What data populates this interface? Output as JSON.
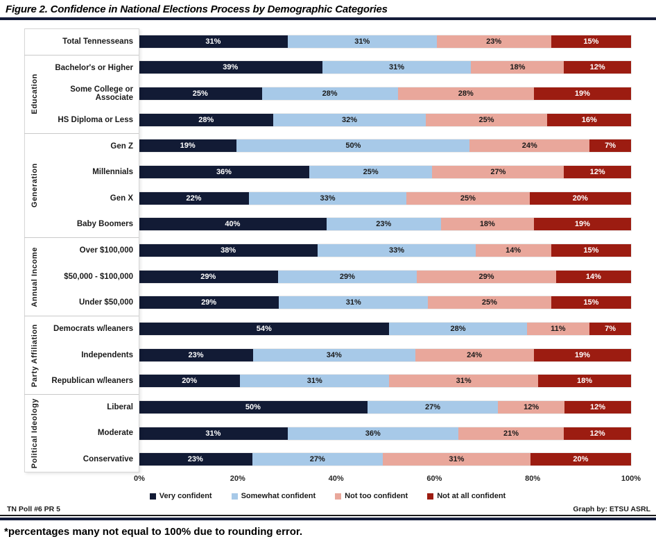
{
  "title": "Figure 2. Confidence in National Elections Process by Demographic Categories",
  "footer": {
    "left": "TN Poll #6 PR 5",
    "right": "Graph by: ETSU ASRL"
  },
  "footnote": "*percentages many not equal to 100% due to rounding error.",
  "colors": {
    "very_confident": "#121b35",
    "somewhat_confident": "#a7c9e8",
    "not_too_confident": "#e9a79b",
    "not_at_all_confident": "#9c1c11",
    "rule": "#141c3a",
    "group_separator": "#c9c9c9"
  },
  "chart_data": {
    "type": "bar",
    "orientation": "horizontal-stacked",
    "stacked": true,
    "xlim": [
      0,
      100
    ],
    "x_ticks": [
      "0%",
      "20%",
      "40%",
      "60%",
      "80%",
      "100%"
    ],
    "grid": false,
    "legend_position": "bottom",
    "series_names": [
      "Very confident",
      "Somewhat confident",
      "Not too confident",
      "Not at all confident"
    ],
    "series_colors": [
      "#121b35",
      "#a7c9e8",
      "#e9a79b",
      "#9c1c11"
    ],
    "series_label_colors": [
      "#ffffff",
      "#1a1a1a",
      "#1a1a1a",
      "#ffffff"
    ],
    "value_suffix": "%",
    "groups": [
      {
        "label": "",
        "rows": [
          {
            "category": "Total Tennesseans",
            "values": [
              31,
              31,
              23,
              15
            ]
          }
        ]
      },
      {
        "label": "Education",
        "rows": [
          {
            "category": "Bachelor's or Higher",
            "values": [
              39,
              31,
              18,
              12
            ]
          },
          {
            "category": "Some College or Associate",
            "values": [
              25,
              28,
              28,
              19
            ]
          },
          {
            "category": "HS Diploma or Less",
            "values": [
              28,
              32,
              25,
              16
            ]
          }
        ]
      },
      {
        "label": "Generation",
        "rows": [
          {
            "category": "Gen Z",
            "values": [
              19,
              50,
              24,
              7
            ]
          },
          {
            "category": "Millennials",
            "values": [
              36,
              25,
              27,
              12
            ]
          },
          {
            "category": "Gen X",
            "values": [
              22,
              33,
              25,
              20
            ]
          },
          {
            "category": "Baby Boomers",
            "values": [
              40,
              23,
              18,
              19
            ]
          }
        ]
      },
      {
        "label": "Annual Income",
        "rows": [
          {
            "category": "Over $100,000",
            "values": [
              38,
              33,
              14,
              15
            ]
          },
          {
            "category": "$50,000 - $100,000",
            "values": [
              29,
              29,
              29,
              14
            ]
          },
          {
            "category": "Under $50,000",
            "values": [
              29,
              31,
              25,
              15
            ]
          }
        ]
      },
      {
        "label": "Party Affiliation",
        "rows": [
          {
            "category": "Democrats w/leaners",
            "values": [
              54,
              28,
              11,
              7
            ]
          },
          {
            "category": "Independents",
            "values": [
              23,
              34,
              24,
              19
            ]
          },
          {
            "category": "Republican w/leaners",
            "values": [
              20,
              31,
              31,
              18
            ]
          }
        ]
      },
      {
        "label": "Political Ideology",
        "rows": [
          {
            "category": "Liberal",
            "values": [
              50,
              27,
              12,
              12
            ]
          },
          {
            "category": "Moderate",
            "values": [
              31,
              36,
              21,
              12
            ]
          },
          {
            "category": "Conservative",
            "values": [
              23,
              27,
              31,
              20
            ]
          }
        ]
      }
    ]
  }
}
